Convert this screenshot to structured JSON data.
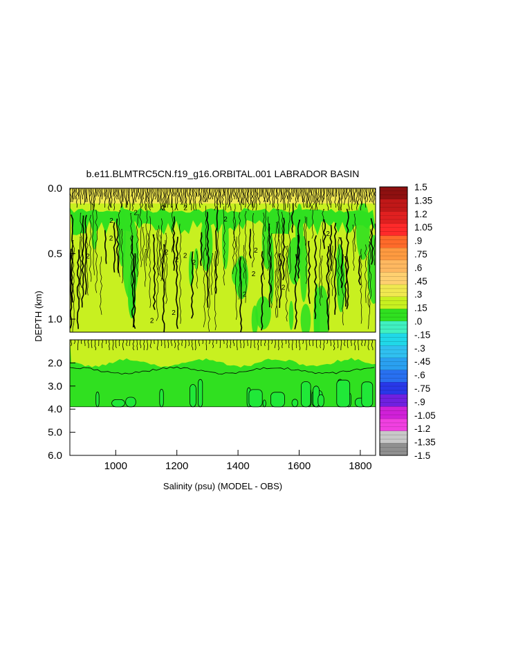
{
  "chart_data": {
    "type": "heatmap",
    "title": "b.e11.BLMTRC5CN.f19_g16.ORBITAL.001 LABRADOR BASIN",
    "xlabel": "Salinity (psu) (MODEL - OBS)",
    "ylabel": "DEPTH (km)",
    "xlim": [
      850,
      1850
    ],
    "x_ticks": [
      "1000",
      "1200",
      "1400",
      "1600",
      "1800"
    ],
    "upper_panel": {
      "ylim": [
        0.0,
        1.1
      ],
      "y_ticks": [
        "0.0",
        "0.5",
        "1.0"
      ]
    },
    "lower_panel": {
      "ylim": [
        1.0,
        6.0
      ],
      "y_ticks": [
        "2.0",
        "3.0",
        "4.0",
        "5.0",
        "6.0"
      ]
    },
    "data_bottom_depth": 3.9,
    "contour_label": "2",
    "colorbar": {
      "range": [
        -1.5,
        1.5
      ],
      "labels": [
        "1.5",
        "1.35",
        "1.2",
        "1.05",
        ".9",
        ".75",
        ".6",
        ".45",
        ".3",
        ".15",
        ".0",
        "-.15",
        "-.3",
        "-.45",
        "-.6",
        "-.75",
        "-.9",
        "-1.05",
        "-1.2",
        "-1.35",
        "-1.5"
      ],
      "colors": [
        "#8e1010",
        "#c01818",
        "#e02020",
        "#ff2a2a",
        "#ff6a2a",
        "#ff9a40",
        "#ffb860",
        "#ffd070",
        "#f0e850",
        "#c8f020",
        "#30e020",
        "#40f0c0",
        "#20d8e8",
        "#30c0f0",
        "#2aa0f0",
        "#2870f0",
        "#2838e8",
        "#7020e0",
        "#d020d8",
        "#f040e0",
        "#c8c8c8",
        "#909090"
      ]
    },
    "field_colors": {
      "upper_base": "#c8f020",
      "upper_band": "#30e020",
      "surface": "#f0e850",
      "deep_base": "#30e020",
      "deep_patch": "#20e838"
    }
  }
}
